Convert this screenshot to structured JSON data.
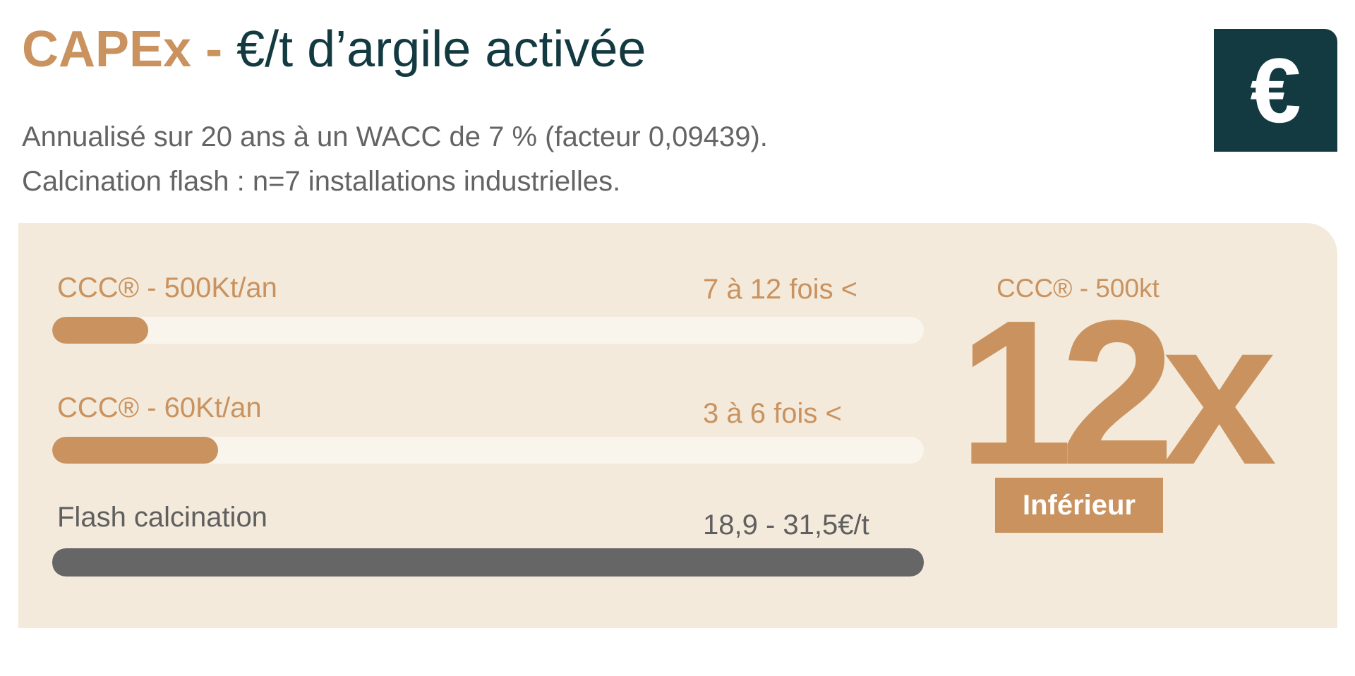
{
  "header": {
    "title_accent": "CAPEx -",
    "title_rest": "€/t d’argile activée",
    "icon": "euro-icon",
    "icon_glyph": "€",
    "subtitle_lines": [
      "Annualisé sur 20 ans à un WACC de 7 % (facteur 0,09439).",
      "Calcination flash : n=7 installations industrielles."
    ]
  },
  "comparison": {
    "rows": [
      {
        "label": "CCC® - 500Kt/an",
        "value": "7 à 12 fois <",
        "fill_fraction": 0.11,
        "color": "#c9925e"
      },
      {
        "label": "CCC® - 60Kt/an",
        "value": "3 à 6 fois <",
        "fill_fraction": 0.19,
        "color": "#c9925e"
      },
      {
        "label": "Flash calcination",
        "value": "18,9 - 31,5€/t",
        "fill_fraction": 1.0,
        "color": "#666666"
      }
    ]
  },
  "highlight": {
    "label": "CCC® - 500kt",
    "number": "12x",
    "badge": "Inférieur"
  },
  "colors": {
    "accent": "#c9925e",
    "dark": "#123a40",
    "panel": "#f3eadb"
  }
}
